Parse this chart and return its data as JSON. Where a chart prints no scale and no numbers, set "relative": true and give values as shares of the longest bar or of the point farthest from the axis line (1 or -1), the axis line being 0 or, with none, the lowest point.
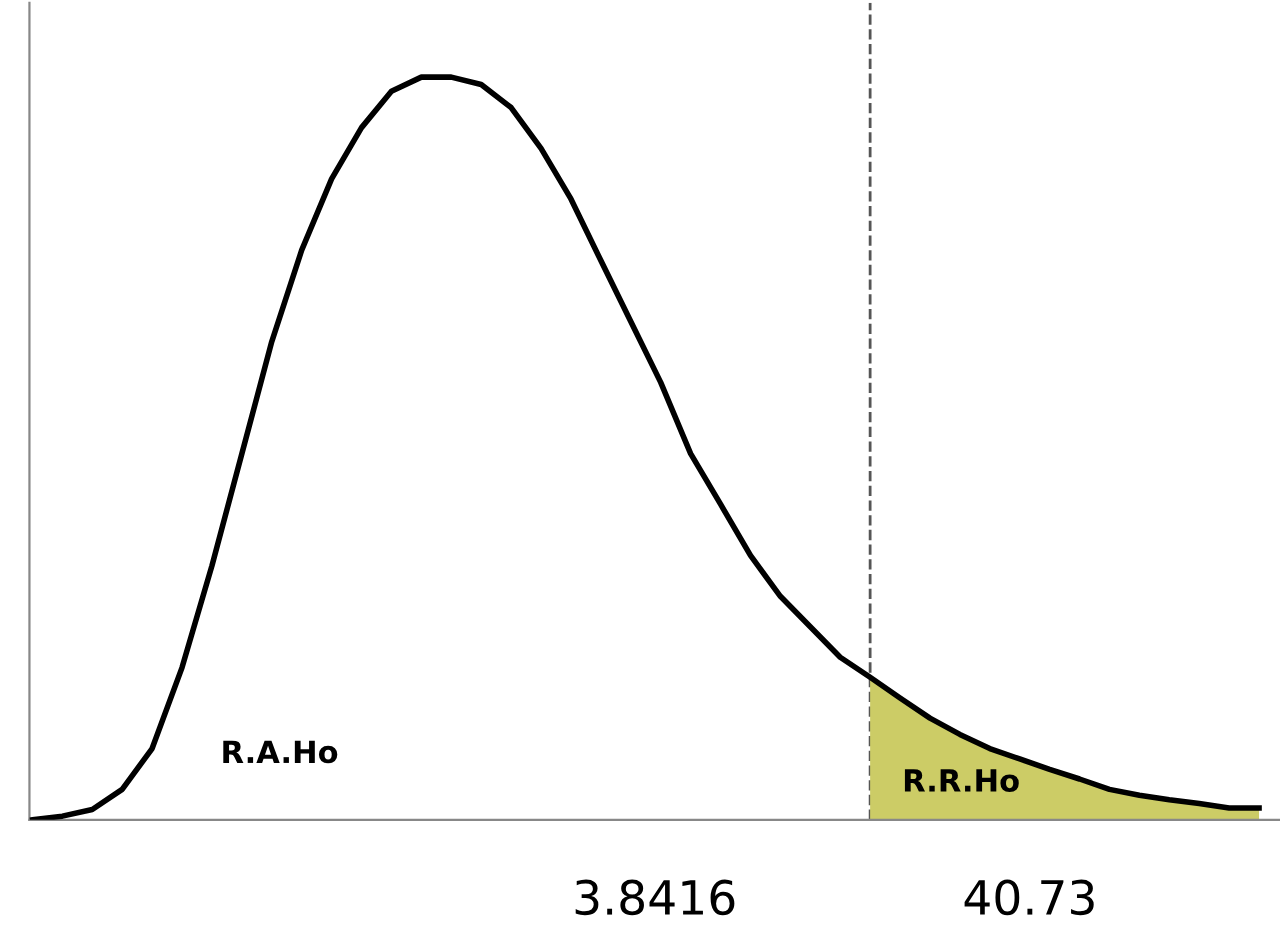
{
  "chart_data": {
    "type": "line",
    "relative": true,
    "categories": [
      null,
      null,
      null,
      null,
      null,
      null,
      null,
      null,
      null,
      null,
      null,
      null,
      null,
      null,
      null,
      null,
      null,
      null,
      null,
      null,
      null,
      null,
      null,
      null,
      null,
      null,
      null,
      null,
      null,
      null,
      null,
      null,
      null,
      null,
      null,
      null,
      null,
      null,
      null,
      null,
      null,
      null
    ],
    "series": [
      {
        "color": "#000000",
        "values": [
          0,
          0.005,
          0.014,
          0.041,
          0.096,
          0.205,
          0.342,
          0.493,
          0.644,
          0.767,
          0.863,
          0.932,
          0.981,
          1.0,
          1.0,
          0.99,
          0.959,
          0.904,
          0.836,
          0.753,
          0.671,
          0.589,
          0.493,
          0.425,
          0.356,
          0.301,
          0.26,
          0.219,
          0.192,
          0.164,
          0.137,
          0.115,
          0.096,
          0.082,
          0.068,
          0.055,
          0.041,
          0.033,
          0.027,
          0.022,
          0.016,
          0.016
        ]
      },
      {
        "type": "area",
        "color": "#cccc66",
        "values": [
          null,
          null,
          null,
          null,
          null,
          null,
          null,
          null,
          null,
          null,
          null,
          null,
          null,
          null,
          null,
          null,
          null,
          null,
          null,
          null,
          null,
          null,
          null,
          null,
          null,
          null,
          null,
          null,
          0.192,
          0.164,
          0.137,
          0.115,
          0.096,
          0.082,
          0.068,
          0.055,
          0.041,
          0.033,
          0.027,
          0.022,
          0.016,
          0.016
        ]
      }
    ],
    "annotations": [
      "R.A.Ho",
      "R.R.Ho",
      "3.8416",
      "40.73"
    ],
    "legend": false,
    "line_style": "solid",
    "marker": "none"
  }
}
